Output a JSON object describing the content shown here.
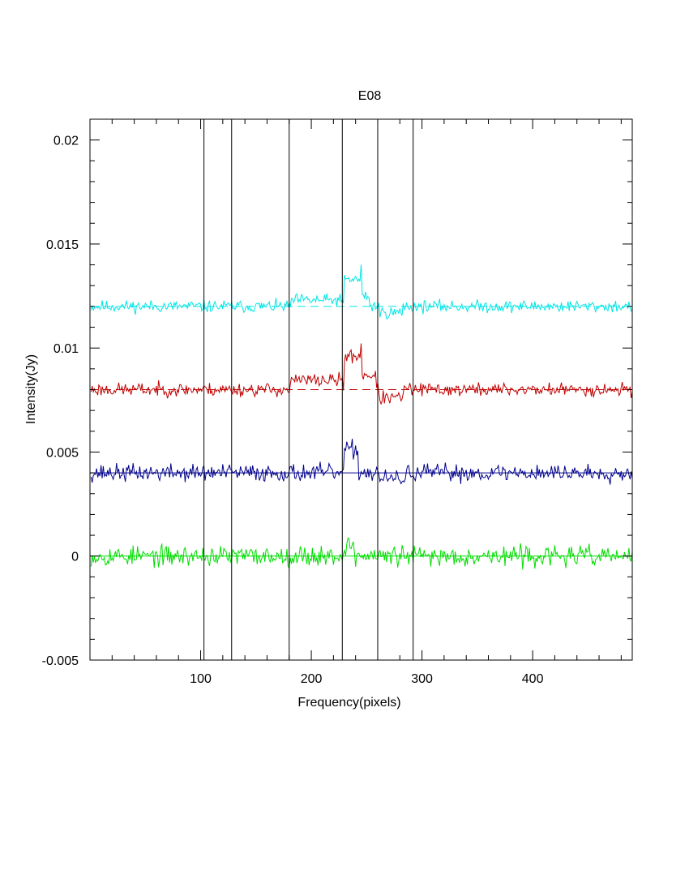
{
  "chart_data": {
    "type": "line",
    "title": "E08",
    "xlabel": "Frequency(pixels)",
    "ylabel": "Intensity(Jy)",
    "xlim": [
      0,
      490
    ],
    "ylim": [
      -0.005,
      0.021
    ],
    "xticks": [
      100,
      200,
      300,
      400
    ],
    "xtick_labels": [
      "100",
      "200",
      "300",
      "400"
    ],
    "yticks": [
      -0.005,
      0,
      0.005,
      0.01,
      0.015,
      0.02
    ],
    "ytick_labels": [
      "-0.005",
      "0",
      "0.005",
      "0.01",
      "0.015",
      "0.02"
    ],
    "grid": false,
    "legend": "none",
    "vertical_lines": [
      103,
      128,
      180,
      228,
      260,
      292
    ],
    "series": [
      {
        "color": "#00e5e5",
        "baseline": 0.012,
        "baseline_style": "dashed",
        "noise": 0.00018,
        "seed": 11,
        "features": [
          {
            "x": [
              182,
              228
            ],
            "offset": 0.0003
          },
          {
            "x": [
              230,
              245
            ],
            "offset": 0.0013
          },
          {
            "x": [
              245,
              252
            ],
            "offset": 0.0005
          },
          {
            "x": [
              262,
              282
            ],
            "offset": -0.0003
          }
        ]
      },
      {
        "color": "#c00000",
        "baseline": 0.008,
        "baseline_style": "dashed",
        "noise": 0.0002,
        "seed": 23,
        "features": [
          {
            "x": [
              182,
              228
            ],
            "offset": 0.00045
          },
          {
            "x": [
              230,
              245
            ],
            "offset": 0.0016
          },
          {
            "x": [
              245,
              258
            ],
            "offset": 0.0007
          },
          {
            "x": [
              262,
              282
            ],
            "offset": -0.0004
          }
        ]
      },
      {
        "color": "#00008b",
        "baseline": 0.004,
        "baseline_style": "solid",
        "noise": 0.00026,
        "seed": 37,
        "features": [
          {
            "x": [
              230,
              242
            ],
            "offset": 0.0011
          },
          {
            "x": [
              262,
              285
            ],
            "offset": -0.0003
          }
        ]
      },
      {
        "color": "#00dd00",
        "baseline": 0.0,
        "baseline_style": "solid",
        "noise": 0.0003,
        "seed": 53,
        "features": [
          {
            "x": [
              230,
              238
            ],
            "offset": 0.0005
          }
        ]
      }
    ]
  }
}
